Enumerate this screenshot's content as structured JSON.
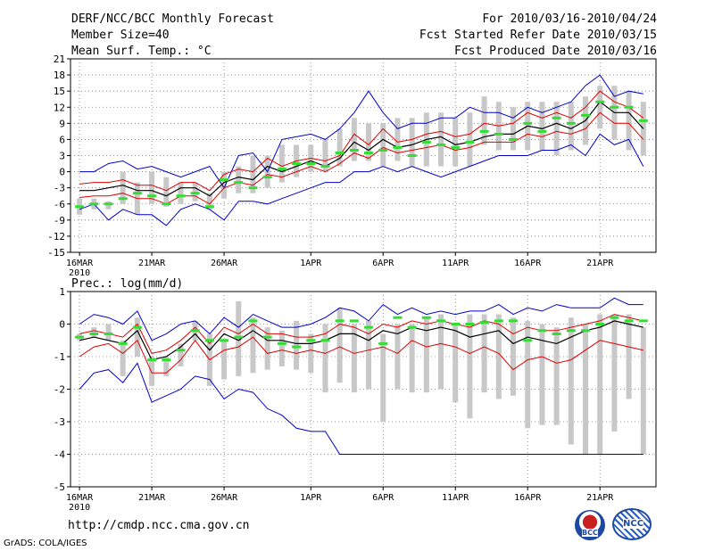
{
  "header": {
    "title": "DERF/NCC/BCC Monthly Forecast",
    "member_size": "Member Size=40",
    "variable": "Mean Surf. Temp.: °C",
    "period": "For 2010/03/16-2010/04/24",
    "started": "Fcst Started Refer Date 2010/03/15",
    "produced": "Fcst Produced Date 2010/03/16"
  },
  "footer": {
    "url": "http://cmdp.ncc.cma.gov.cn",
    "grads": "GrADS: COLA/IGES",
    "logo1_text": "BCC",
    "logo2_text": "NCC"
  },
  "colors": {
    "envelope": "#0000cc",
    "spread": "#dd0000",
    "mean": "#000000",
    "obs": "#33dd33",
    "box": "#c8c8c8"
  },
  "chart_data": [
    {
      "type": "line",
      "title": "Mean Surf. Temp.: °C",
      "x_tick_labels": [
        "16MAR",
        "21MAR",
        "26MAR",
        "1APR",
        "6APR",
        "11APR",
        "16APR",
        "21APR"
      ],
      "x_tick_days": [
        1,
        6,
        11,
        17,
        22,
        27,
        32,
        37
      ],
      "x_year_label": "2010",
      "ylim": [
        -15,
        21
      ],
      "y_ticks": [
        -15,
        -12,
        -9,
        -6,
        -3,
        0,
        3,
        6,
        9,
        12,
        15,
        18,
        21
      ],
      "days": [
        1,
        2,
        3,
        4,
        5,
        6,
        7,
        8,
        9,
        10,
        11,
        12,
        13,
        14,
        15,
        16,
        17,
        18,
        19,
        20,
        21,
        22,
        23,
        24,
        25,
        26,
        27,
        28,
        29,
        30,
        31,
        32,
        33,
        34,
        35,
        36,
        37,
        38,
        39,
        40
      ],
      "series": [
        {
          "name": "max",
          "values": [
            0,
            0,
            1.5,
            2,
            0.5,
            1,
            0,
            -1,
            0,
            1,
            -3,
            3,
            3.5,
            0,
            6,
            6.5,
            7,
            6,
            8,
            11,
            15,
            11,
            8,
            9,
            9,
            10,
            10,
            12,
            11,
            11,
            10,
            12,
            11,
            12,
            13,
            16,
            18,
            14,
            15,
            14.5
          ]
        },
        {
          "name": "upper",
          "values": [
            -2.3,
            -2,
            -2,
            -1.5,
            -2.5,
            -2.5,
            -3.5,
            -2,
            -2,
            -3.5,
            -0.5,
            0.5,
            0,
            2.5,
            1,
            2,
            2.5,
            2,
            3,
            7,
            5,
            8,
            5.5,
            6,
            7,
            7.5,
            6.5,
            7,
            9,
            8.5,
            9,
            11,
            10,
            11,
            10,
            12,
            15,
            13,
            12,
            10
          ]
        },
        {
          "name": "mean",
          "values": [
            -3.5,
            -3.5,
            -3,
            -2.5,
            -3.5,
            -3.5,
            -4.5,
            -3,
            -3,
            -4.5,
            -2,
            -1,
            -1.5,
            1,
            0,
            1,
            2,
            1,
            2.5,
            5.5,
            4,
            6,
            4.5,
            5,
            6,
            6.5,
            5,
            5.5,
            6.5,
            7,
            7,
            8.5,
            8,
            9,
            8,
            9.5,
            13,
            11,
            11,
            8
          ]
        },
        {
          "name": "lower",
          "values": [
            -4.8,
            -4.5,
            -4.5,
            -4,
            -5,
            -5,
            -6,
            -4.5,
            -4.5,
            -6,
            -3,
            -2,
            -2.5,
            -0.5,
            -1,
            0,
            1,
            0,
            1.5,
            3.5,
            2.5,
            4.5,
            3.5,
            4,
            4.5,
            5,
            4,
            4.5,
            5.5,
            5.5,
            5.5,
            7,
            6.5,
            7.5,
            7,
            8,
            11,
            9,
            9,
            6
          ]
        },
        {
          "name": "min",
          "values": [
            -7,
            -6,
            -9,
            -7,
            -8,
            -8,
            -10,
            -7,
            -6,
            -7,
            -9,
            -5.5,
            -5.5,
            -6,
            -5,
            -4,
            -3,
            -2,
            -2,
            0,
            0,
            1,
            0,
            1,
            0,
            -1,
            0,
            1,
            2,
            3,
            3,
            3,
            4,
            4,
            5,
            3,
            7,
            5,
            6,
            1
          ]
        },
        {
          "name": "observed",
          "values": [
            -6.5,
            -6,
            -6,
            -5,
            -4,
            -4.5,
            -6,
            -4.5,
            -4,
            -6.5,
            -1.5,
            -2,
            -3,
            -1,
            0.5,
            1.5,
            1.5,
            1,
            3.5,
            4,
            3.5,
            4,
            4.5,
            3,
            5.5,
            5,
            4.5,
            5.5,
            7.5,
            7,
            6,
            9,
            7.5,
            10,
            9,
            10.5,
            13,
            12,
            12,
            9.5
          ]
        }
      ],
      "box_ranges": [
        [
          -8,
          -5
        ],
        [
          -7,
          -5
        ],
        [
          -7,
          -5.5
        ],
        [
          -6,
          0
        ],
        [
          -8,
          -2
        ],
        [
          -6,
          0
        ],
        [
          -6.5,
          -1
        ],
        [
          -6,
          -2
        ],
        [
          -5.5,
          -2
        ],
        [
          -7,
          -4
        ],
        [
          -5,
          0
        ],
        [
          -4,
          1
        ],
        [
          -4,
          3
        ],
        [
          -3,
          3
        ],
        [
          -2,
          5
        ],
        [
          -1,
          5
        ],
        [
          0,
          5
        ],
        [
          0,
          6
        ],
        [
          1,
          8
        ],
        [
          2,
          10
        ],
        [
          2,
          9
        ],
        [
          1,
          9
        ],
        [
          2,
          10
        ],
        [
          1,
          10
        ],
        [
          1,
          11
        ],
        [
          1,
          11
        ],
        [
          1,
          10
        ],
        [
          1,
          11
        ],
        [
          5,
          14
        ],
        [
          4,
          13
        ],
        [
          4,
          12
        ],
        [
          4,
          13
        ],
        [
          4,
          13
        ],
        [
          3,
          13
        ],
        [
          4,
          13
        ],
        [
          5,
          14
        ],
        [
          8,
          16
        ],
        [
          6,
          16
        ],
        [
          4,
          15
        ],
        [
          3,
          13
        ]
      ]
    },
    {
      "type": "line",
      "title": "Prec.: log(mm/d)",
      "x_tick_labels": [
        "16MAR",
        "21MAR",
        "26MAR",
        "1APR",
        "6APR",
        "11APR",
        "16APR",
        "21APR"
      ],
      "x_tick_days": [
        1,
        6,
        11,
        17,
        22,
        27,
        32,
        37
      ],
      "x_year_label": "2010",
      "ylim": [
        -5,
        1
      ],
      "y_ticks": [
        -5,
        -4,
        -3,
        -2,
        -1,
        0,
        1
      ],
      "days": [
        1,
        2,
        3,
        4,
        5,
        6,
        7,
        8,
        9,
        10,
        11,
        12,
        13,
        14,
        15,
        16,
        17,
        18,
        19,
        20,
        21,
        22,
        23,
        24,
        25,
        26,
        27,
        28,
        29,
        30,
        31,
        32,
        33,
        34,
        35,
        36,
        37,
        38,
        39,
        40
      ],
      "series": [
        {
          "name": "max",
          "values": [
            0,
            0.3,
            0.2,
            0,
            0.4,
            -0.5,
            -0.3,
            0,
            0.1,
            -0.3,
            0.2,
            -0.1,
            0.3,
            0.1,
            -0.1,
            -0.1,
            0,
            0.2,
            0.5,
            0.4,
            0.1,
            0.6,
            0.3,
            0.5,
            0.3,
            0.4,
            0.3,
            0.4,
            0.4,
            0.6,
            0.3,
            0.5,
            0.4,
            0.6,
            0.5,
            0.5,
            0.5,
            0.8,
            0.6,
            0.6
          ]
        },
        {
          "name": "upper",
          "values": [
            -0.3,
            -0.2,
            -0.3,
            -0.4,
            0,
            -0.9,
            -0.8,
            -0.5,
            -0.1,
            -0.6,
            -0.1,
            -0.3,
            0,
            -0.3,
            -0.3,
            -0.4,
            -0.4,
            -0.3,
            0,
            -0.1,
            -0.3,
            0,
            -0.1,
            0.1,
            0,
            0.1,
            0,
            -0.1,
            0.1,
            0,
            -0.3,
            -0.1,
            -0.2,
            -0.2,
            -0.1,
            0,
            0.1,
            0.3,
            0.2,
            0.1
          ]
        },
        {
          "name": "mean",
          "values": [
            -0.5,
            -0.4,
            -0.5,
            -0.6,
            -0.2,
            -1.1,
            -1,
            -0.7,
            -0.3,
            -0.8,
            -0.3,
            -0.5,
            -0.2,
            -0.5,
            -0.5,
            -0.6,
            -0.6,
            -0.5,
            -0.3,
            -0.3,
            -0.5,
            -0.2,
            -0.3,
            -0.1,
            -0.2,
            -0.1,
            -0.2,
            -0.4,
            -0.3,
            -0.2,
            -0.6,
            -0.4,
            -0.5,
            -0.6,
            -0.4,
            -0.2,
            -0.1,
            0.1,
            0,
            -0.1
          ]
        },
        {
          "name": "lower",
          "values": [
            -1,
            -0.7,
            -0.6,
            -0.9,
            -0.5,
            -1.5,
            -1.5,
            -1.1,
            -0.5,
            -1.1,
            -0.8,
            -0.7,
            -0.4,
            -0.9,
            -0.8,
            -0.9,
            -0.8,
            -0.9,
            -0.7,
            -0.9,
            -0.8,
            -0.7,
            -0.9,
            -0.5,
            -0.7,
            -0.6,
            -0.7,
            -0.9,
            -0.7,
            -0.9,
            -1.4,
            -1.1,
            -1,
            -1.2,
            -1.1,
            -0.8,
            -0.5,
            -0.6,
            -0.7,
            -0.8
          ]
        },
        {
          "name": "min",
          "values": [
            -2,
            -1.5,
            -1.4,
            -1.8,
            -1.2,
            -2.4,
            -2.2,
            -2,
            -1.6,
            -1.7,
            -2.3,
            -2,
            -2.1,
            -2.6,
            -2.8,
            -3.2,
            -3.3,
            -3.3,
            -4,
            -4,
            -4,
            -4,
            -4,
            -4,
            -4,
            -4,
            -4,
            -4,
            -4,
            -4,
            -4,
            -4,
            -4,
            -4,
            -4,
            -4,
            -4,
            -4,
            -4,
            -4
          ]
        },
        {
          "name": "observed",
          "values": [
            -0.4,
            -0.3,
            -0.3,
            -0.6,
            -0.1,
            -1.1,
            -1.1,
            -0.8,
            -0.2,
            -0.5,
            -0.5,
            -0.4,
            0.1,
            -0.4,
            -0.6,
            -0.7,
            -0.5,
            -0.5,
            0.1,
            0.1,
            -0.1,
            -0.6,
            0.2,
            -0.1,
            0.2,
            0.1,
            0,
            0,
            0.05,
            0.1,
            0.1,
            -0.5,
            -0.2,
            -0.3,
            -0.2,
            -0.2,
            0,
            0.2,
            0.1,
            0.1
          ]
        }
      ],
      "box_ranges": [
        [
          -0.5,
          -0.3
        ],
        [
          -0.4,
          -0.1
        ],
        [
          -0.5,
          0
        ],
        [
          -1.6,
          -0.5
        ],
        [
          -1,
          0.2
        ],
        [
          -1.9,
          -1
        ],
        [
          -1.6,
          -1
        ],
        [
          -1.3,
          -0.6
        ],
        [
          -0.5,
          0.1
        ],
        [
          -1.9,
          -0.3
        ],
        [
          -1.7,
          -0.5
        ],
        [
          -1.6,
          0.7
        ],
        [
          -1.5,
          0.2
        ],
        [
          -1.4,
          -0.1
        ],
        [
          -1.3,
          -0.2
        ],
        [
          -1.4,
          0.1
        ],
        [
          -1.5,
          -0.3
        ],
        [
          -2.1,
          0
        ],
        [
          -1.8,
          0.5
        ],
        [
          -2.1,
          0
        ],
        [
          -2,
          0.1
        ],
        [
          -3,
          -0.3
        ],
        [
          -2,
          0
        ],
        [
          -2.1,
          0
        ],
        [
          -2.1,
          0.2
        ],
        [
          -2,
          0.3
        ],
        [
          -2.4,
          0
        ],
        [
          -2.9,
          0.3
        ],
        [
          -2.1,
          0.3
        ],
        [
          -2.3,
          0.3
        ],
        [
          -2.2,
          0.2
        ],
        [
          -3.2,
          0.1
        ],
        [
          -3.1,
          0
        ],
        [
          -3.1,
          -0.1
        ],
        [
          -3.7,
          0.2
        ],
        [
          -4,
          0
        ],
        [
          -4,
          0.3
        ],
        [
          -3.3,
          0.3
        ],
        [
          -2.3,
          0.3
        ],
        [
          -4,
          -0.1
        ]
      ]
    }
  ]
}
